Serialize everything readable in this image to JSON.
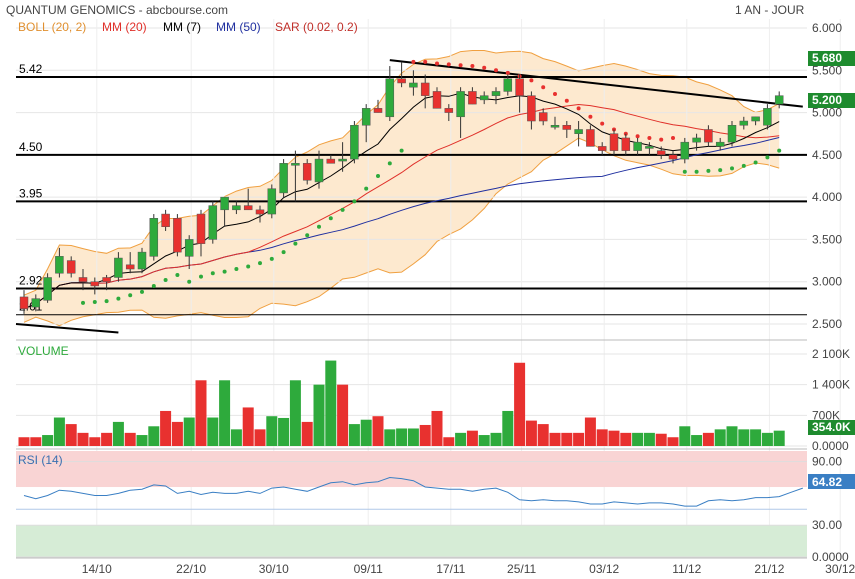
{
  "header": {
    "title": "QUANTUM GENOMICS - abcbourse.com",
    "period": "1 AN - JOUR"
  },
  "colors": {
    "up": "#2eaa3c",
    "down": "#e8312f",
    "boll": "#f0a040",
    "boll_fill": "#fde9cf",
    "mm20": "#e0302a",
    "mm7": "#000000",
    "mm50": "#2030a0",
    "sar": "#e8312f",
    "sar_up": "#2eaa3c",
    "rsi": "#3a7fc4",
    "rsi_high": "#f9d4d4",
    "rsi_low": "#d6ecd6",
    "price_label": "#1e8b2e"
  },
  "legend": [
    {
      "label": "BOLL (20, 2)",
      "color": "#f0a040"
    },
    {
      "label": "MM (20)",
      "color": "#e0302a"
    },
    {
      "label": "MM (7)",
      "color": "#000000"
    },
    {
      "label": "MM (50)",
      "color": "#2030a0"
    },
    {
      "label": "SAR (0.02, 0.2)",
      "color": "#c0302a"
    }
  ],
  "chart_data": [
    {
      "type": "candlestick",
      "title": "QUANTUM GENOMICS",
      "ylim": [
        2.45,
        6.05
      ],
      "yticks": [
        "6.000",
        "5.500",
        "5.000",
        "4.500",
        "4.000",
        "3.500",
        "3.000",
        "2.500"
      ],
      "xticks": [
        "14/10",
        "22/10",
        "30/10",
        "09/11",
        "17/11",
        "25/11",
        "03/12",
        "11/12",
        "21/12",
        "30/12"
      ],
      "last_price": "5.200",
      "resistance_price": "5.680",
      "horizontal_levels": [
        {
          "label": "5.42",
          "value": 5.42
        },
        {
          "label": "4.50",
          "value": 4.5
        },
        {
          "label": "3.95",
          "value": 3.95
        },
        {
          "label": "2.92",
          "value": 2.92
        },
        {
          "label": "2.61",
          "value": 2.61
        }
      ],
      "candles": [
        {
          "o": 2.82,
          "h": 2.9,
          "l": 2.62,
          "c": 2.68
        },
        {
          "o": 2.7,
          "h": 2.85,
          "l": 2.65,
          "c": 2.8
        },
        {
          "o": 2.78,
          "h": 3.1,
          "l": 2.75,
          "c": 3.05
        },
        {
          "o": 3.1,
          "h": 3.4,
          "l": 3.05,
          "c": 3.3
        },
        {
          "o": 3.25,
          "h": 3.3,
          "l": 3.05,
          "c": 3.1
        },
        {
          "o": 3.05,
          "h": 3.15,
          "l": 2.9,
          "c": 3.0
        },
        {
          "o": 3.0,
          "h": 3.05,
          "l": 2.85,
          "c": 2.95
        },
        {
          "o": 3.05,
          "h": 3.08,
          "l": 2.9,
          "c": 3.0
        },
        {
          "o": 3.05,
          "h": 3.35,
          "l": 3.0,
          "c": 3.28
        },
        {
          "o": 3.2,
          "h": 3.35,
          "l": 3.1,
          "c": 3.15
        },
        {
          "o": 3.15,
          "h": 3.4,
          "l": 3.1,
          "c": 3.35
        },
        {
          "o": 3.3,
          "h": 3.8,
          "l": 3.25,
          "c": 3.75
        },
        {
          "o": 3.8,
          "h": 3.85,
          "l": 3.6,
          "c": 3.65
        },
        {
          "o": 3.75,
          "h": 3.8,
          "l": 3.3,
          "c": 3.35
        },
        {
          "o": 3.3,
          "h": 3.55,
          "l": 3.15,
          "c": 3.5
        },
        {
          "o": 3.8,
          "h": 3.85,
          "l": 3.3,
          "c": 3.45
        },
        {
          "o": 3.5,
          "h": 3.95,
          "l": 3.45,
          "c": 3.9
        },
        {
          "o": 3.85,
          "h": 4.0,
          "l": 3.65,
          "c": 4.0
        },
        {
          "o": 3.85,
          "h": 3.95,
          "l": 3.8,
          "c": 3.9
        },
        {
          "o": 3.9,
          "h": 4.1,
          "l": 3.85,
          "c": 3.85
        },
        {
          "o": 3.85,
          "h": 3.9,
          "l": 3.7,
          "c": 3.8
        },
        {
          "o": 3.8,
          "h": 4.15,
          "l": 3.75,
          "c": 4.1
        },
        {
          "o": 4.05,
          "h": 4.45,
          "l": 4.0,
          "c": 4.4
        },
        {
          "o": 4.4,
          "h": 4.55,
          "l": 3.95,
          "c": 4.4
        },
        {
          "o": 4.4,
          "h": 4.45,
          "l": 4.15,
          "c": 4.2
        },
        {
          "o": 4.18,
          "h": 4.55,
          "l": 4.1,
          "c": 4.45
        },
        {
          "o": 4.45,
          "h": 4.5,
          "l": 4.4,
          "c": 4.4
        },
        {
          "o": 4.45,
          "h": 4.65,
          "l": 4.3,
          "c": 4.45
        },
        {
          "o": 4.45,
          "h": 4.9,
          "l": 4.4,
          "c": 4.85
        },
        {
          "o": 4.85,
          "h": 5.1,
          "l": 4.65,
          "c": 5.05
        },
        {
          "o": 5.05,
          "h": 5.15,
          "l": 5.0,
          "c": 5.0
        },
        {
          "o": 4.95,
          "h": 5.55,
          "l": 4.9,
          "c": 5.4
        },
        {
          "o": 5.4,
          "h": 5.6,
          "l": 5.3,
          "c": 5.35
        },
        {
          "o": 5.3,
          "h": 5.5,
          "l": 5.2,
          "c": 5.35
        },
        {
          "o": 5.35,
          "h": 5.45,
          "l": 5.05,
          "c": 5.2
        },
        {
          "o": 5.25,
          "h": 5.3,
          "l": 5.05,
          "c": 5.05
        },
        {
          "o": 5.05,
          "h": 5.1,
          "l": 4.9,
          "c": 5.0
        },
        {
          "o": 4.95,
          "h": 5.3,
          "l": 4.7,
          "c": 5.25
        },
        {
          "o": 5.25,
          "h": 5.3,
          "l": 5.1,
          "c": 5.1
        },
        {
          "o": 5.15,
          "h": 5.25,
          "l": 5.1,
          "c": 5.2
        },
        {
          "o": 5.2,
          "h": 5.3,
          "l": 5.1,
          "c": 5.25
        },
        {
          "o": 5.25,
          "h": 5.45,
          "l": 5.2,
          "c": 5.4
        },
        {
          "o": 5.4,
          "h": 5.45,
          "l": 5.0,
          "c": 5.2
        },
        {
          "o": 5.2,
          "h": 5.25,
          "l": 4.8,
          "c": 4.9
        },
        {
          "o": 5.0,
          "h": 5.05,
          "l": 4.85,
          "c": 4.9
        },
        {
          "o": 4.85,
          "h": 4.95,
          "l": 4.8,
          "c": 4.85
        },
        {
          "o": 4.85,
          "h": 4.9,
          "l": 4.7,
          "c": 4.8
        },
        {
          "o": 4.75,
          "h": 4.9,
          "l": 4.6,
          "c": 4.8
        },
        {
          "o": 4.8,
          "h": 4.85,
          "l": 4.6,
          "c": 4.6
        },
        {
          "o": 4.6,
          "h": 4.65,
          "l": 4.5,
          "c": 4.55
        },
        {
          "o": 4.75,
          "h": 4.8,
          "l": 4.5,
          "c": 4.55
        },
        {
          "o": 4.7,
          "h": 4.75,
          "l": 4.5,
          "c": 4.55
        },
        {
          "o": 4.55,
          "h": 4.7,
          "l": 4.5,
          "c": 4.65
        },
        {
          "o": 4.6,
          "h": 4.65,
          "l": 4.5,
          "c": 4.6
        },
        {
          "o": 4.55,
          "h": 4.6,
          "l": 4.45,
          "c": 4.5
        },
        {
          "o": 4.5,
          "h": 4.55,
          "l": 4.4,
          "c": 4.45
        },
        {
          "o": 4.45,
          "h": 4.7,
          "l": 4.4,
          "c": 4.65
        },
        {
          "o": 4.65,
          "h": 4.75,
          "l": 4.55,
          "c": 4.7
        },
        {
          "o": 4.8,
          "h": 4.85,
          "l": 4.6,
          "c": 4.65
        },
        {
          "o": 4.6,
          "h": 4.7,
          "l": 4.55,
          "c": 4.65
        },
        {
          "o": 4.65,
          "h": 4.9,
          "l": 4.6,
          "c": 4.85
        },
        {
          "o": 4.85,
          "h": 4.95,
          "l": 4.8,
          "c": 4.9
        },
        {
          "o": 4.9,
          "h": 4.95,
          "l": 4.85,
          "c": 4.95
        },
        {
          "o": 4.85,
          "h": 5.1,
          "l": 4.8,
          "c": 5.05
        },
        {
          "o": 5.1,
          "h": 5.25,
          "l": 5.05,
          "c": 5.2
        }
      ],
      "sar": [
        {
          "i": 5,
          "v": 2.75
        },
        {
          "i": 6,
          "v": 2.76
        },
        {
          "i": 7,
          "v": 2.77
        },
        {
          "i": 8,
          "v": 2.8
        },
        {
          "i": 9,
          "v": 2.84
        },
        {
          "i": 10,
          "v": 2.88
        },
        {
          "i": 11,
          "v": 2.95
        },
        {
          "i": 12,
          "v": 3.02
        },
        {
          "i": 13,
          "v": 3.08
        },
        {
          "i": 14,
          "v": 3.0
        },
        {
          "i": 15,
          "v": 3.06
        },
        {
          "i": 16,
          "v": 3.1
        },
        {
          "i": 17,
          "v": 3.12
        },
        {
          "i": 18,
          "v": 3.15
        },
        {
          "i": 19,
          "v": 3.18
        },
        {
          "i": 20,
          "v": 3.22
        },
        {
          "i": 21,
          "v": 3.27
        },
        {
          "i": 22,
          "v": 3.35
        },
        {
          "i": 23,
          "v": 3.45
        },
        {
          "i": 24,
          "v": 3.55
        },
        {
          "i": 25,
          "v": 3.65
        },
        {
          "i": 26,
          "v": 3.75
        },
        {
          "i": 27,
          "v": 3.85
        },
        {
          "i": 28,
          "v": 3.95
        },
        {
          "i": 29,
          "v": 4.1
        },
        {
          "i": 30,
          "v": 4.25
        },
        {
          "i": 31,
          "v": 4.4
        },
        {
          "i": 32,
          "v": 4.55
        },
        {
          "i": 33,
          "v": 5.6
        },
        {
          "i": 34,
          "v": 5.6
        },
        {
          "i": 35,
          "v": 5.58
        },
        {
          "i": 36,
          "v": 5.57
        },
        {
          "i": 37,
          "v": 5.56
        },
        {
          "i": 38,
          "v": 5.55
        },
        {
          "i": 39,
          "v": 5.53
        },
        {
          "i": 40,
          "v": 5.5
        },
        {
          "i": 41,
          "v": 5.47
        },
        {
          "i": 42,
          "v": 5.43
        },
        {
          "i": 43,
          "v": 5.38
        },
        {
          "i": 44,
          "v": 5.3
        },
        {
          "i": 45,
          "v": 5.22
        },
        {
          "i": 46,
          "v": 5.14
        },
        {
          "i": 47,
          "v": 5.05
        },
        {
          "i": 48,
          "v": 4.95
        },
        {
          "i": 49,
          "v": 4.87
        },
        {
          "i": 50,
          "v": 4.8
        },
        {
          "i": 51,
          "v": 4.75
        },
        {
          "i": 52,
          "v": 4.72
        },
        {
          "i": 53,
          "v": 4.7
        },
        {
          "i": 54,
          "v": 4.68
        },
        {
          "i": 55,
          "v": 4.7
        },
        {
          "i": 56,
          "v": 4.3
        },
        {
          "i": 57,
          "v": 4.3
        },
        {
          "i": 58,
          "v": 4.31
        },
        {
          "i": 59,
          "v": 4.32
        },
        {
          "i": 60,
          "v": 4.34
        },
        {
          "i": 61,
          "v": 4.37
        },
        {
          "i": 62,
          "v": 4.41
        },
        {
          "i": 63,
          "v": 4.47
        },
        {
          "i": 64,
          "v": 4.55
        }
      ],
      "trendline": {
        "from": {
          "i": 31,
          "v": 5.62
        },
        "to": {
          "i": 66,
          "v": 5.07
        }
      },
      "support_line": {
        "from": {
          "i": 0,
          "v": 2.5
        },
        "to": {
          "i": 8,
          "v": 2.4
        }
      }
    },
    {
      "type": "bar",
      "title": "VOLUME",
      "ylim": [
        0,
        2100
      ],
      "yticks": [
        "2 100K",
        "1 400K",
        "700K",
        "0.0000"
      ],
      "last_value": "354.0K",
      "volumes": [
        200,
        200,
        250,
        650,
        500,
        300,
        200,
        300,
        550,
        300,
        250,
        450,
        800,
        550,
        650,
        1500,
        650,
        1500,
        380,
        880,
        380,
        680,
        640,
        1500,
        550,
        1400,
        1950,
        1400,
        500,
        600,
        680,
        380,
        400,
        400,
        480,
        800,
        200,
        300,
        350,
        250,
        300,
        800,
        1900,
        580,
        500,
        300,
        300,
        300,
        650,
        380,
        350,
        300,
        300,
        300,
        280,
        200,
        450,
        250,
        300,
        380,
        450,
        380,
        380,
        300,
        350
      ],
      "up_flags": [
        0,
        0,
        1,
        1,
        0,
        0,
        0,
        0,
        1,
        0,
        1,
        1,
        0,
        0,
        1,
        0,
        1,
        1,
        1,
        0,
        0,
        1,
        1,
        1,
        0,
        1,
        1,
        0,
        1,
        1,
        0,
        1,
        1,
        1,
        0,
        0,
        0,
        1,
        0,
        1,
        1,
        1,
        0,
        0,
        0,
        0,
        0,
        0,
        0,
        0,
        0,
        0,
        1,
        1,
        0,
        0,
        1,
        1,
        0,
        1,
        1,
        1,
        1,
        1,
        1
      ]
    },
    {
      "type": "line",
      "title": "RSI (14)",
      "ylim": [
        0,
        100
      ],
      "yticks": [
        "90.00",
        "30.00",
        "0.0000"
      ],
      "last_value": "64.82",
      "zones": [
        {
          "from": 66,
          "to": 100,
          "kind": "high"
        },
        {
          "from": 0,
          "to": 30,
          "kind": "low"
        }
      ],
      "values": [
        58,
        55,
        58,
        63,
        62,
        60,
        58,
        58,
        60,
        63,
        64,
        68,
        67,
        60,
        62,
        59,
        61,
        60,
        60,
        62,
        60,
        65,
        66,
        64,
        62,
        66,
        70,
        71,
        68,
        70,
        71,
        75,
        74,
        72,
        66,
        65,
        64,
        64,
        62,
        64,
        65,
        61,
        54,
        53,
        54,
        53,
        53,
        52,
        50,
        50,
        52,
        51,
        50,
        51,
        51,
        50,
        48,
        48,
        53,
        54,
        53,
        54,
        56,
        56,
        57,
        61,
        65
      ]
    }
  ]
}
